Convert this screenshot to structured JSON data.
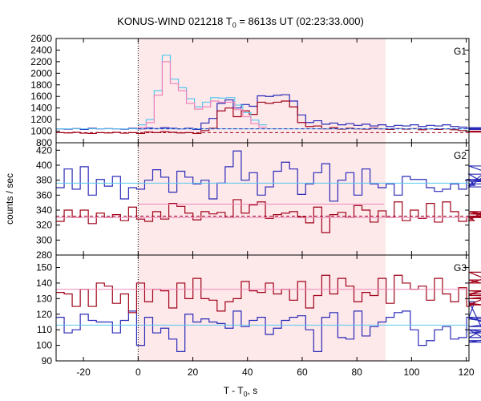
{
  "chart_data": {
    "type": "line",
    "title_main": "KONUS-WIND 021218 T",
    "title_sub": "0",
    "title_rest": " = 8613s UT (02:23:33.000)",
    "xlabel_main": "T - T",
    "xlabel_sub": "0",
    "xlabel_rest": ", s",
    "ylabel": "counts / sec",
    "xlim": [
      -30,
      121
    ],
    "x_ticks": [
      -20,
      0,
      20,
      40,
      60,
      80,
      100,
      120
    ],
    "shaded_interval": [
      0,
      90.5
    ],
    "colors": {
      "blue": "#2a2ab8",
      "red": "#a00018",
      "cyan": "#5ac8ee",
      "pink": "#ee88bb",
      "shade": "#fde8ea"
    },
    "panels": [
      {
        "label": "G1",
        "ylim": [
          800,
          2600
        ],
        "y_ticks": [
          800,
          1000,
          1200,
          1400,
          1600,
          1800,
          2000,
          2200,
          2400,
          2600
        ],
        "x_start": -30,
        "bin": 2.944,
        "series": [
          {
            "color": "blue",
            "style": "steps",
            "values": [
              1040,
              1035,
              1045,
              1030,
              1050,
              1040,
              1045,
              1040,
              1035,
              1050,
              1040,
              1055,
              1045,
              1060,
              1050,
              1040,
              1050,
              1030,
              1140,
              1220,
              1480,
              1540,
              1400,
              1460,
              1430,
              1610,
              1600,
              1620,
              1630,
              1520,
              1280,
              1150,
              1180,
              1120,
              1140,
              1110,
              1130,
              1100,
              1120,
              1090,
              1110,
              1080,
              1100,
              1090,
              1110,
              1080,
              1100,
              1090,
              1110,
              1080,
              1070,
              1050,
              1050,
              1060,
              1040,
              1060,
              1030,
              1050,
              1050
            ]
          },
          {
            "color": "red",
            "style": "steps",
            "values": [
              975,
              970,
              980,
              965,
              960,
              975,
              970,
              980,
              965,
              975,
              960,
              985,
              975,
              990,
              980,
              970,
              975,
              960,
              1010,
              1050,
              1350,
              1400,
              1250,
              1350,
              1290,
              1500,
              1480,
              1500,
              1520,
              1420,
              1150,
              1080,
              1090,
              1040,
              1060,
              1035,
              1050,
              1040,
              1035,
              1050,
              1040,
              1030,
              1045,
              1035,
              1045,
              1025,
              1040,
              1030,
              1040,
              1025,
              1010,
              1000,
              995,
              1000,
              990,
              1000,
              985,
              995,
              990
            ]
          },
          {
            "color": "cyan",
            "style": "steps",
            "x_start": 0,
            "values": [
              1110,
              1200,
              1700,
              2310,
              1900,
              1750,
              1560,
              1420,
              1500,
              1580,
              1570,
              1580,
              1450,
              1320,
              1190,
              1110
            ]
          },
          {
            "color": "pink",
            "style": "steps",
            "x_start": 0,
            "values": [
              1060,
              1150,
              1620,
              2200,
              1820,
              1700,
              1480,
              1380,
              1420,
              1520,
              1500,
              1500,
              1370,
              1250,
              1130,
              1070
            ]
          },
          {
            "color": "cyan",
            "style": "flat",
            "x": [
              -30,
              121
            ],
            "value": 1040
          },
          {
            "color": "blue",
            "style": "dashed",
            "x": [
              0,
              121
            ],
            "value": 1040
          },
          {
            "color": "red",
            "style": "dashed",
            "x": [
              -30,
              121
            ],
            "value": 975
          }
        ]
      },
      {
        "label": "G2",
        "ylim": [
          280,
          430
        ],
        "y_ticks": [
          280,
          300,
          320,
          340,
          360,
          380,
          400,
          420
        ],
        "x_start": -30,
        "bin": 2.944,
        "series": [
          {
            "color": "blue",
            "style": "steps",
            "values": [
              370,
              395,
              368,
              398,
              360,
              381,
              372,
              385,
              355,
              370,
              368,
              380,
              394,
              384,
              364,
              392,
              384,
              375,
              380,
              355,
              376,
              398,
              419,
              380,
              390,
              360,
              371,
              392,
              404,
              395,
              361,
              375,
              390,
              402,
              352,
              380,
              390,
              360,
              395,
              375,
              370,
              375,
              360,
              385,
              381,
              381,
              370,
              365,
              368,
              375,
              368,
              381,
              373,
              388,
              371,
              399,
              381,
              379,
              375
            ]
          },
          {
            "color": "red",
            "style": "steps",
            "values": [
              325,
              340,
              330,
              340,
              322,
              336,
              330,
              334,
              326,
              344,
              328,
              325,
              338,
              328,
              349,
              345,
              336,
              327,
              338,
              335,
              337,
              330,
              354,
              336,
              347,
              351,
              329,
              334,
              336,
              338,
              331,
              323,
              344,
              310,
              334,
              337,
              330,
              346,
              340,
              324,
              339,
              330,
              351,
              326,
              340,
              329,
              349,
              324,
              351,
              338,
              325,
              330,
              326,
              338,
              330,
              338,
              330,
              335,
              332
            ]
          },
          {
            "color": "pink",
            "style": "flat",
            "x": [
              -30,
              121
            ],
            "value": 330
          },
          {
            "color": "pink",
            "style": "flat",
            "x": [
              0,
              90
            ],
            "value": 348
          },
          {
            "color": "red",
            "style": "dashed",
            "x": [
              -30,
              121
            ],
            "value": 332
          },
          {
            "color": "cyan",
            "style": "flat",
            "x": [
              -30,
              121
            ],
            "value": 376
          }
        ]
      },
      {
        "label": "G3",
        "ylim": [
          90,
          158
        ],
        "y_ticks": [
          90,
          100,
          110,
          120,
          130,
          140,
          150
        ],
        "x_start": -30,
        "bin": 2.944,
        "series": [
          {
            "color": "blue",
            "style": "steps",
            "values": [
              118,
              108,
              110,
              120,
              116,
              115,
              115,
              108,
              116,
              122,
              100,
              118,
              108,
              111,
              104,
              96,
              120,
              115,
              117,
              115,
              114,
              111,
              122,
              112,
              116,
              118,
              107,
              111,
              116,
              118,
              119,
              110,
              96,
              118,
              121,
              105,
              104,
              122,
              106,
              112,
              115,
              118,
              121,
              122,
              110,
              100,
              103,
              110,
              112,
              104,
              105,
              118,
              128,
              110,
              102,
              105,
              118,
              108,
              112,
              117,
              110,
              103
            ]
          },
          {
            "color": "red",
            "style": "steps",
            "values": [
              134,
              133,
              125,
              136,
              125,
              140,
              138,
              127,
              133,
              121,
              140,
              128,
              136,
              135,
              124,
              140,
              130,
              143,
              130,
              129,
              122,
              128,
              130,
              141,
              135,
              134,
              140,
              133,
              136,
              129,
              141,
              124,
              132,
              145,
              133,
              143,
              138,
              128,
              134,
              132,
              143,
              127,
              145,
              140,
              136,
              138,
              129,
              143,
              133,
              128,
              137,
              125,
              127,
              126,
              132,
              140,
              147,
              135,
              133,
              142,
              130,
              135
            ]
          },
          {
            "color": "pink",
            "style": "flat",
            "x": [
              -30,
              121
            ],
            "value": 136
          },
          {
            "color": "cyan",
            "style": "flat",
            "x": [
              -30,
              121
            ],
            "value": 113
          }
        ]
      }
    ]
  }
}
